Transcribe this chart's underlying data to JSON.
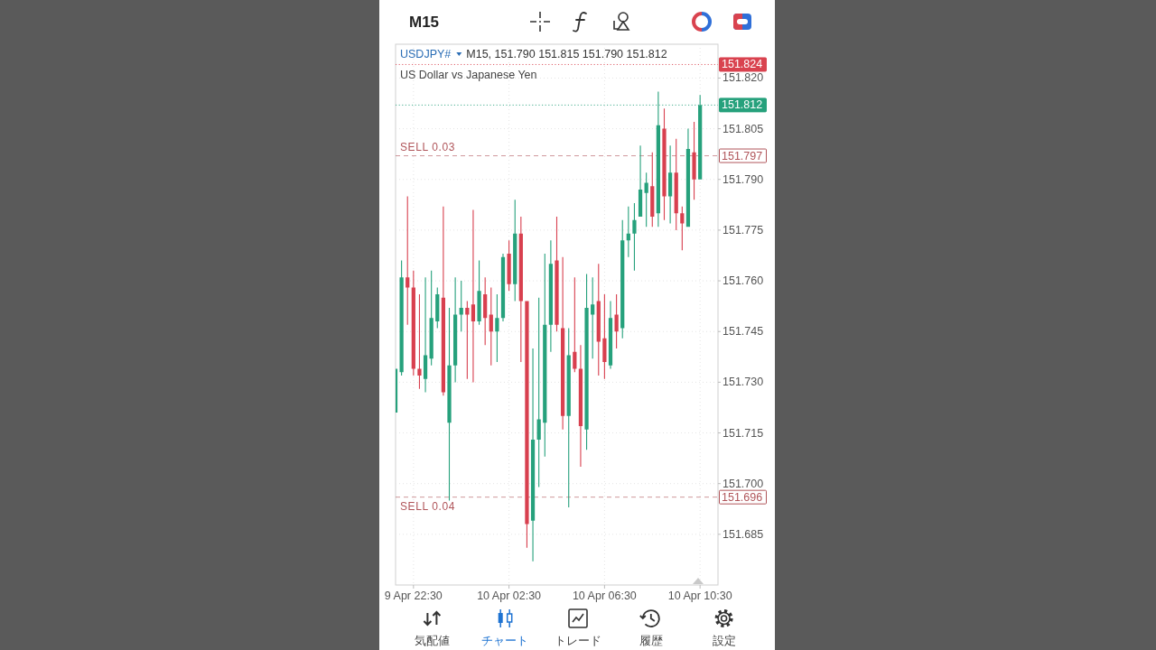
{
  "chart_data": {
    "type": "candlestick",
    "title": "M15",
    "subtitle": "US Dollar vs Japanese Yen",
    "annotations": [
      "USDJPY#",
      "M15, 151.790 151.815 151.790 151.812",
      "気配値",
      "チャート",
      "トレード",
      "履歴",
      "設定",
      {
        "text": "151.797",
        "x": "--04-10T11:15",
        "y": 151.797
      },
      {
        "text": "151.696",
        "x": "--04-10T11:15",
        "y": 151.696
      }
    ],
    "x": [
      "--04-09T21:45",
      "--04-09T22:00",
      "--04-09T22:15",
      "--04-09T22:30",
      "--04-09T22:45",
      "--04-09T23:00",
      "--04-09T23:15",
      "--04-09T23:30",
      "--04-09T23:45",
      "--04-10T00:00",
      "--04-10T00:15",
      "--04-10T00:30",
      "--04-10T00:45",
      "--04-10T01:00",
      "--04-10T01:15",
      "--04-10T01:30",
      "--04-10T01:45",
      "--04-10T02:00",
      "--04-10T02:15",
      "--04-10T02:30",
      "--04-10T02:45",
      "--04-10T03:00",
      "--04-10T03:15",
      "--04-10T03:30",
      "--04-10T03:45",
      "--04-10T04:00",
      "--04-10T04:15",
      "--04-10T04:30",
      "--04-10T04:45",
      "--04-10T05:00",
      "--04-10T05:15",
      "--04-10T05:30",
      "--04-10T05:45",
      "--04-10T06:00",
      "--04-10T06:15",
      "--04-10T06:30",
      "--04-10T06:45",
      "--04-10T07:00",
      "--04-10T07:15",
      "--04-10T07:30",
      "--04-10T07:45",
      "--04-10T08:00",
      "--04-10T08:15",
      "--04-10T08:30",
      "--04-10T08:45",
      "--04-10T09:00",
      "--04-10T09:15",
      "--04-10T09:30",
      "--04-10T09:45",
      "--04-10T10:00",
      "--04-10T10:15",
      "--04-10T10:30"
    ],
    "ohlc": [
      [
        151.721,
        151.734,
        151.721,
        151.734
      ],
      [
        151.733,
        151.766,
        151.732,
        151.761
      ],
      [
        151.761,
        151.785,
        151.747,
        151.758
      ],
      [
        151.758,
        151.763,
        151.732,
        151.734
      ],
      [
        151.734,
        151.756,
        151.728,
        151.732
      ],
      [
        151.731,
        151.761,
        151.727,
        151.738
      ],
      [
        151.737,
        151.763,
        151.735,
        151.749
      ],
      [
        151.748,
        151.758,
        151.746,
        151.756
      ],
      [
        151.755,
        151.782,
        151.726,
        151.727
      ],
      [
        151.718,
        151.752,
        151.695,
        151.735
      ],
      [
        151.735,
        151.761,
        151.73,
        151.75
      ],
      [
        151.75,
        151.76,
        151.745,
        151.752
      ],
      [
        151.752,
        151.754,
        151.731,
        151.75
      ],
      [
        151.753,
        151.781,
        151.73,
        151.748
      ],
      [
        151.748,
        151.766,
        151.747,
        151.757
      ],
      [
        151.756,
        151.761,
        151.741,
        151.749
      ],
      [
        151.75,
        151.758,
        151.735,
        151.745
      ],
      [
        151.745,
        151.756,
        151.736,
        151.749
      ],
      [
        151.749,
        151.768,
        151.748,
        151.767
      ],
      [
        151.768,
        151.772,
        151.757,
        151.759
      ],
      [
        151.759,
        151.784,
        151.754,
        151.774
      ],
      [
        151.774,
        151.779,
        151.736,
        151.754
      ],
      [
        151.754,
        151.754,
        151.681,
        151.688
      ],
      [
        151.689,
        151.74,
        151.677,
        151.713
      ],
      [
        151.713,
        151.755,
        151.699,
        151.719
      ],
      [
        151.718,
        151.768,
        151.708,
        151.747
      ],
      [
        151.747,
        151.772,
        151.739,
        151.765
      ],
      [
        151.766,
        151.779,
        151.745,
        151.747
      ],
      [
        151.746,
        151.767,
        151.716,
        151.72
      ],
      [
        151.72,
        151.746,
        151.693,
        151.738
      ],
      [
        151.739,
        151.761,
        151.733,
        151.734
      ],
      [
        151.734,
        151.741,
        151.705,
        151.717
      ],
      [
        151.716,
        151.762,
        151.71,
        151.752
      ],
      [
        151.75,
        151.761,
        151.737,
        151.753
      ],
      [
        151.754,
        151.765,
        151.732,
        151.742
      ],
      [
        151.743,
        151.756,
        151.731,
        151.736
      ],
      [
        151.735,
        151.754,
        151.734,
        151.749
      ],
      [
        151.75,
        151.756,
        151.74,
        151.745
      ],
      [
        151.746,
        151.778,
        151.743,
        151.772
      ],
      [
        151.772,
        151.782,
        151.767,
        151.774
      ],
      [
        151.774,
        151.783,
        151.763,
        151.778
      ],
      [
        151.779,
        151.8,
        151.779,
        151.787
      ],
      [
        151.786,
        151.792,
        151.776,
        151.789
      ],
      [
        151.788,
        151.798,
        151.776,
        151.779
      ],
      [
        151.78,
        151.816,
        151.776,
        151.806
      ],
      [
        151.805,
        151.811,
        151.778,
        151.785
      ],
      [
        151.785,
        151.8,
        151.777,
        151.792
      ],
      [
        151.792,
        151.802,
        151.775,
        151.78
      ],
      [
        151.78,
        151.782,
        151.769,
        151.777
      ],
      [
        151.776,
        151.805,
        151.776,
        151.799
      ],
      [
        151.798,
        151.807,
        151.784,
        151.79
      ],
      [
        151.79,
        151.815,
        151.79,
        151.812
      ]
    ],
    "colors": [
      "#26a17c",
      "#26a17c",
      "#d8404f",
      "#d8404f",
      "#d8404f",
      "#26a17c",
      "#26a17c",
      "#26a17c",
      "#d8404f",
      "#26a17c",
      "#26a17c",
      "#26a17c",
      "#d8404f",
      "#d8404f",
      "#26a17c",
      "#d8404f",
      "#d8404f",
      "#26a17c",
      "#26a17c",
      "#d8404f",
      "#26a17c",
      "#d8404f",
      "#d8404f",
      "#26a17c",
      "#26a17c",
      "#26a17c",
      "#26a17c",
      "#d8404f",
      "#d8404f",
      "#26a17c",
      "#d8404f",
      "#d8404f",
      "#26a17c",
      "#26a17c",
      "#d8404f",
      "#d8404f",
      "#26a17c",
      "#d8404f",
      "#26a17c",
      "#26a17c",
      "#26a17c",
      "#26a17c",
      "#26a17c",
      "#d8404f",
      "#26a17c",
      "#d8404f",
      "#26a17c",
      "#d8404f",
      "#d8404f",
      "#26a17c",
      "#d8404f",
      "#26a17c"
    ],
    "xlim": [
      "--04-09T21:45",
      "--04-10T11:15"
    ],
    "xticks": [
      {
        "value": "--04-09T22:30",
        "label": "9 Apr 22:30"
      },
      {
        "value": "--04-10T02:30",
        "label": "10 Apr 02:30"
      },
      {
        "value": "--04-10T06:30",
        "label": "10 Apr 06:30"
      },
      {
        "value": "--04-10T10:30",
        "label": "10 Apr 10:30"
      }
    ],
    "ylim": [
      151.67,
      151.83
    ],
    "yticks": [
      151.685,
      {
        "value": 151.7,
        "label": "151.700"
      },
      151.715,
      {
        "value": 151.73,
        "label": "151.730"
      },
      151.745,
      {
        "value": 151.76,
        "label": "151.760"
      },
      151.775,
      {
        "value": 151.79,
        "label": "151.790"
      },
      151.805,
      {
        "value": 151.82,
        "label": "151.820"
      }
    ],
    "ref_lines": [
      {
        "axis": "y",
        "value": 151.824,
        "label": "151.824",
        "color": "#d9434f",
        "line_style": "dotted"
      },
      {
        "axis": "y",
        "value": 151.812,
        "label": "151.812",
        "color": "#26a17c",
        "line_style": "dotted"
      },
      {
        "axis": "y",
        "value": 151.797,
        "label": "SELL 0.03",
        "color": "#b0555a",
        "line_style": "dashed"
      },
      {
        "axis": "y",
        "value": 151.696,
        "label": "SELL 0.04",
        "color": "#b0555a",
        "line_style": "dashed"
      }
    ],
    "grid": true
  }
}
